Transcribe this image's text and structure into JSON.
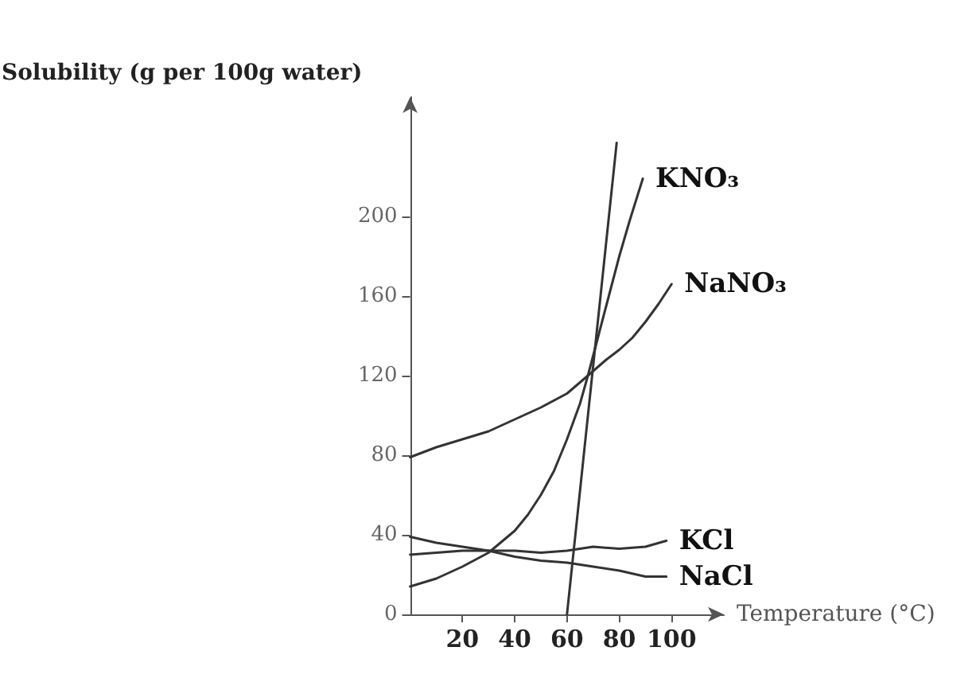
{
  "chart_data": {
    "type": "line",
    "xlabel": "Temperature (°C)",
    "ylabel": "Solubility (g per 100g water)",
    "xlim": [
      0,
      120
    ],
    "xticks": [
      20,
      40,
      60,
      80,
      100
    ],
    "ylim": [
      0,
      260
    ],
    "yticks": [
      0,
      40,
      80,
      120,
      160,
      200
    ],
    "grid": false,
    "legend": false,
    "marker": "none",
    "line_style": "solid",
    "series": [
      {
        "name": "KNO₃",
        "color": "#333333",
        "x": [
          0,
          10,
          20,
          30,
          40,
          45,
          50,
          55,
          60,
          65,
          68,
          72,
          76,
          80,
          84,
          89
        ],
        "values": [
          14,
          18,
          24,
          31,
          42,
          50,
          60,
          72,
          88,
          106,
          120,
          140,
          160,
          180,
          198,
          219
        ]
      },
      {
        "name": "NaNO₃",
        "color": "#333333",
        "x": [
          0,
          10,
          20,
          30,
          40,
          50,
          60,
          68,
          75,
          80,
          85,
          90,
          95,
          100
        ],
        "values": [
          79,
          84,
          88,
          92,
          98,
          104,
          111,
          120,
          128,
          133,
          139,
          147,
          156,
          166
        ]
      },
      {
        "name": "KCl",
        "color": "#333333",
        "x": [
          0,
          10,
          20,
          30,
          40,
          50,
          60,
          70,
          80,
          90,
          98
        ],
        "values": [
          30,
          31,
          32,
          32,
          32,
          31,
          32,
          34,
          33,
          34,
          37
        ]
      },
      {
        "name": "NaCl",
        "color": "#333333",
        "x": [
          0,
          10,
          20,
          30,
          40,
          50,
          60,
          70,
          80,
          90,
          98
        ],
        "values": [
          39,
          36,
          34,
          32,
          29,
          27,
          26,
          24,
          22,
          19,
          19
        ]
      },
      {
        "color": "#333333",
        "x": [
          60,
          79
        ],
        "values": [
          0,
          237
        ]
      }
    ]
  }
}
